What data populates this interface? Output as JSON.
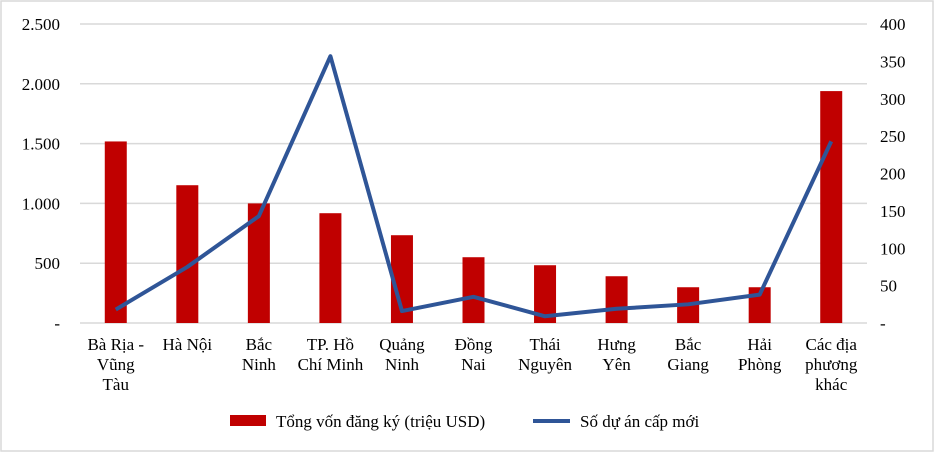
{
  "chart_data": {
    "type": "bar",
    "categories": [
      [
        "Bà Rịa -",
        "Vũng",
        "Tàu"
      ],
      [
        "Hà Nội"
      ],
      [
        "Bắc",
        "Ninh"
      ],
      [
        "TP. Hồ",
        "Chí Minh"
      ],
      [
        "Quảng",
        "Ninh"
      ],
      [
        "Đồng",
        "Nai"
      ],
      [
        "Thái",
        "Nguyên"
      ],
      [
        "Hưng",
        "Yên"
      ],
      [
        "Bắc",
        "Giang"
      ],
      [
        "Hải",
        "Phòng"
      ],
      [
        "Các địa",
        "phương",
        "khác"
      ]
    ],
    "series": [
      {
        "name": "Tổng vốn đăng ký (triệu USD)",
        "type": "bar",
        "axis": "left",
        "color": "#C00000",
        "values": [
          1518,
          1152,
          1000,
          918,
          734,
          550,
          483,
          391,
          299,
          299,
          1939
        ]
      },
      {
        "name": "Số dự án cấp mới",
        "type": "line",
        "axis": "right",
        "color": "#2F5597",
        "values": [
          18,
          75,
          143,
          357,
          16,
          35,
          9,
          19,
          25,
          38,
          243
        ]
      }
    ],
    "y_left": {
      "range": [
        0,
        2500
      ],
      "ticks": [
        "-",
        "500",
        "1.000",
        "1.500",
        "2.000",
        "2.500"
      ]
    },
    "y_right": {
      "range": [
        0,
        400
      ],
      "ticks": [
        "-",
        "50",
        "100",
        "150",
        "200",
        "250",
        "300",
        "350",
        "400"
      ]
    },
    "grid": true,
    "legend": "bottom"
  }
}
